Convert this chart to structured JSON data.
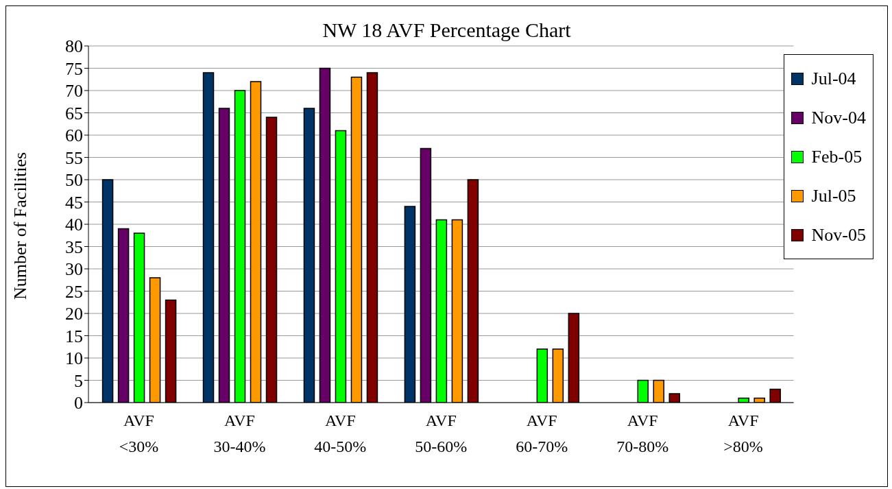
{
  "chart_data": {
    "type": "bar",
    "title": "NW 18 AVF Percentage Chart",
    "ylabel": "Number of Facilities",
    "categories": [
      "AVF <30%",
      "AVF 30-40%",
      "AVF 40-50%",
      "AVF 50-60%",
      "AVF 60-70%",
      "AVF 70-80%",
      "AVF >80%"
    ],
    "series": [
      {
        "name": "Jul-04",
        "color": "#003366",
        "values": [
          50,
          74,
          66,
          44,
          0,
          0,
          0
        ]
      },
      {
        "name": "Nov-04",
        "color": "#660066",
        "values": [
          39,
          66,
          75,
          57,
          0,
          0,
          0
        ]
      },
      {
        "name": "Feb-05",
        "color": "#00ff00",
        "values": [
          38,
          70,
          61,
          41,
          12,
          5,
          1
        ]
      },
      {
        "name": "Jul-05",
        "color": "#ff9900",
        "values": [
          28,
          72,
          73,
          41,
          12,
          5,
          1
        ]
      },
      {
        "name": "Nov-05",
        "color": "#800000",
        "values": [
          23,
          64,
          74,
          50,
          20,
          2,
          3
        ]
      }
    ],
    "ylim": [
      0,
      80
    ],
    "yticks": [
      0,
      5,
      10,
      15,
      20,
      25,
      30,
      35,
      40,
      45,
      50,
      55,
      60,
      65,
      70,
      75,
      80
    ],
    "grid": "y",
    "legend": "top right"
  }
}
